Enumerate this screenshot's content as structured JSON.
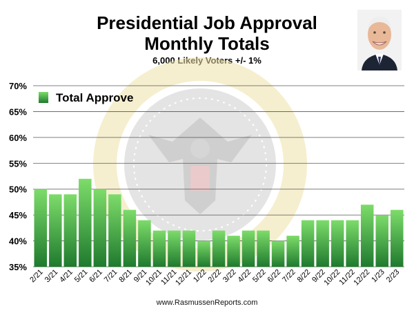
{
  "header": {
    "title_line1": "Presidential Job Approval",
    "title_line2": "Monthly Totals",
    "subtitle": "6,000 Likely Voters +/- 1%"
  },
  "footer": {
    "source": "www.RasmussenReports.com"
  },
  "colors": {
    "bar_top": "#7ddc6a",
    "bar_bottom": "#1f7a2e",
    "grid": "#555555",
    "seal_gold": "#e8d77a",
    "seal_gray": "#bfbfbf"
  },
  "chart_data": {
    "type": "bar",
    "categories": [
      "2/21",
      "3/21",
      "4/21",
      "5/21",
      "6/21",
      "7/21",
      "8/21",
      "9/21",
      "10/21",
      "11/21",
      "12/21",
      "1/22",
      "2/22",
      "3/22",
      "4/22",
      "5/22",
      "6/22",
      "7/22",
      "8/22",
      "9/22",
      "10/22",
      "11/22",
      "12/22",
      "1/23",
      "2/23"
    ],
    "series": [
      {
        "name": "Total Approve",
        "values": [
          50,
          49,
          49,
          52,
          50,
          49,
          46,
          44,
          42,
          42,
          42,
          40,
          42,
          41,
          42,
          42,
          40,
          41,
          44,
          44,
          44,
          44,
          47,
          45,
          46
        ]
      }
    ],
    "yticks": [
      "35%",
      "40%",
      "45%",
      "50%",
      "55%",
      "60%",
      "65%",
      "70%"
    ],
    "ylim": [
      35,
      70
    ],
    "grid": true,
    "legend": "top-left"
  }
}
